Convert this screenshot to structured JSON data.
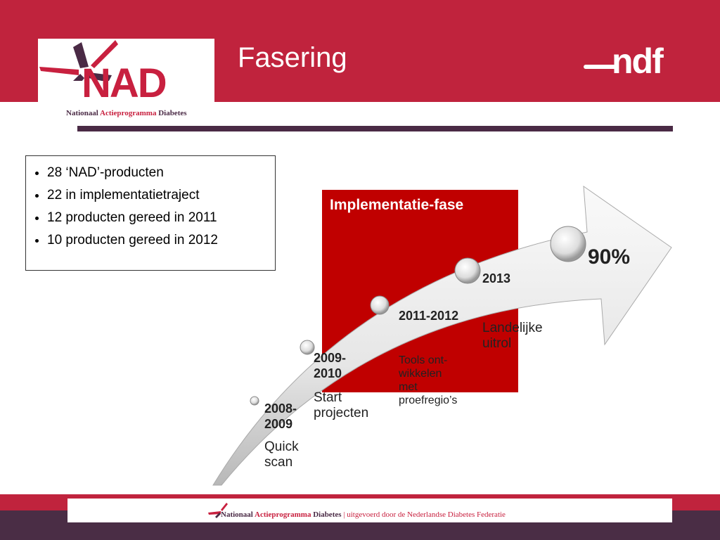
{
  "header": {
    "title": "Fasering",
    "logo_text": "NAD",
    "logo_subtitle": [
      "Nationaal",
      "Actieprogramma",
      "Diabetes"
    ],
    "partner_logo": "ndf"
  },
  "bullets": [
    "28 ‘NAD’-producten",
    "22 in implementatietraject",
    "12 producten gereed in 2011",
    "10 producten gereed in 2012"
  ],
  "phase_label": "Implementatie-fase",
  "milestones": [
    {
      "year": "2008-\n2009",
      "desc": "Quick\nscan"
    },
    {
      "year": "2009-\n2010",
      "desc": "Start\nprojecten"
    },
    {
      "year": "2011-2012",
      "desc": "Tools ont-\nwikkelen\nmet\nproefregio’s"
    },
    {
      "year": "2013",
      "desc": "Landelijke\nuitrol"
    },
    {
      "year": "90%",
      "desc": ""
    }
  ],
  "footer": {
    "org": "Nationaal",
    "org_red": "Actieprogramma",
    "org_end": "Diabetes",
    "tagline": "| uitgevoerd door de Nederlandse Diabetes Federatie"
  },
  "colors": {
    "header": "#c0233d",
    "purple": "#4a2a45",
    "phase": "#c00000"
  }
}
